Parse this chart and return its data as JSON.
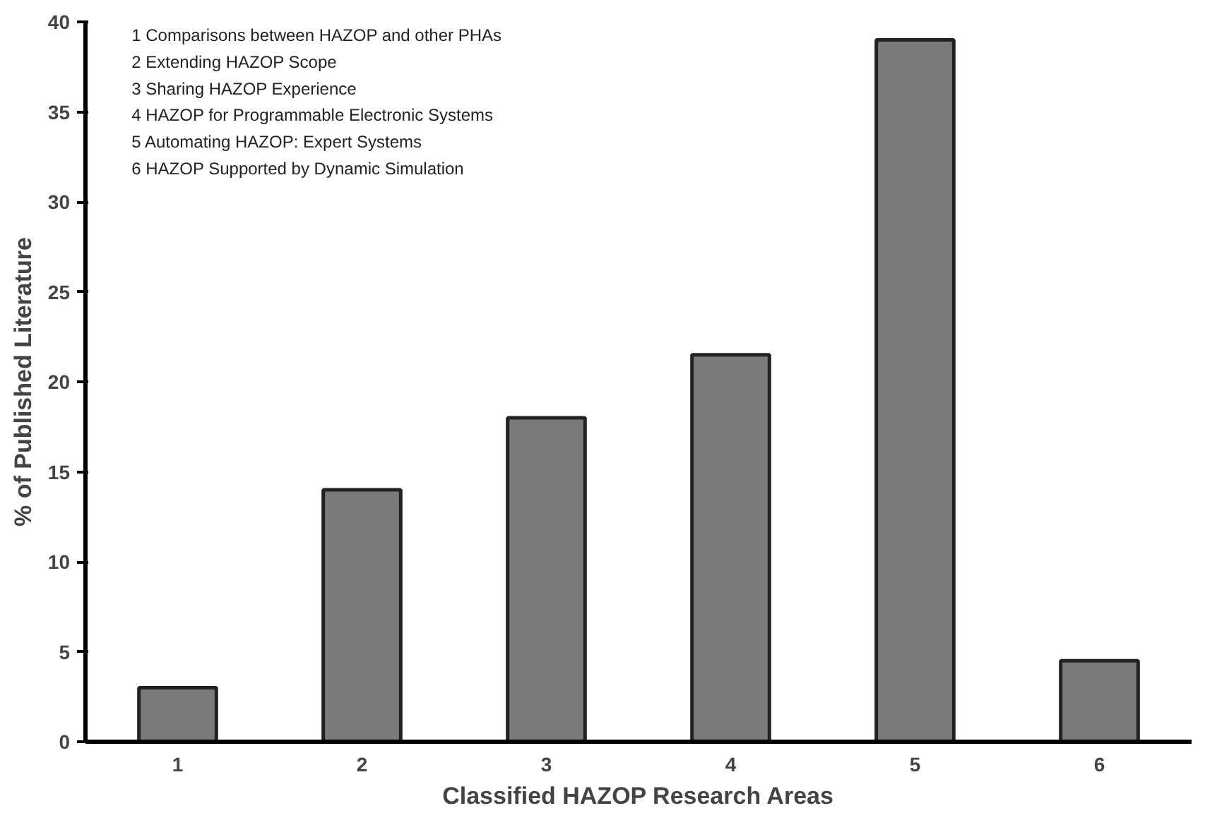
{
  "chart_data": {
    "type": "bar",
    "xlabel": "Classified HAZOP Research Areas",
    "ylabel": "% of Published Literature",
    "categories": [
      "1",
      "2",
      "3",
      "4",
      "5",
      "6"
    ],
    "values": [
      3,
      14,
      18,
      21.5,
      39,
      4.5
    ],
    "color": "#7a7a7a",
    "ylim": [
      0,
      40
    ],
    "yticks": [
      0,
      5,
      10,
      15,
      20,
      25,
      30,
      35,
      40
    ],
    "grid": false,
    "annotations": [
      "1 Comparisons between HAZOP and other PHAs",
      "2 Extending HAZOP Scope",
      "3 Sharing HAZOP Experience",
      "4 HAZOP for Programmable Electronic Systems",
      "5 Automating HAZOP: Expert Systems",
      "6 HAZOP Supported by Dynamic Simulation"
    ]
  }
}
